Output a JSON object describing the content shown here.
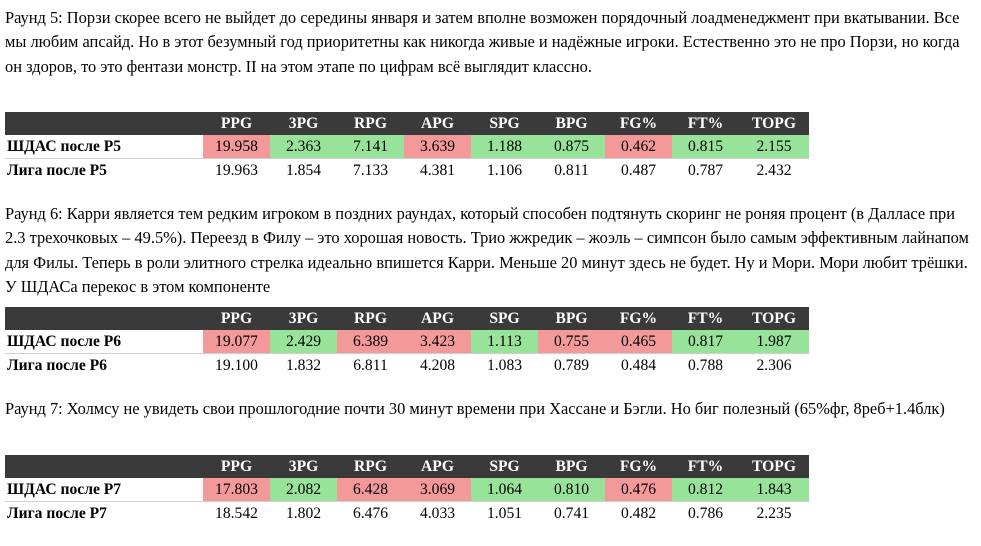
{
  "colors": {
    "header_bg": "#3a3a3a",
    "worse": "#f4999a",
    "better": "#98e39a"
  },
  "sections": [
    {
      "text": "Раунд 5: Порзи скорее всего не выйдет до середины января и затем вполне возможен порядочный лоадменеджмент при вкатывании. Все мы любим апсайд. Но в этот безумный год приоритетны как никогда живые и надёжные игроки. Естественно это не про Порзи, но когда он здоров, то это фентази монстр. II на этом этапе по цифрам всё выглядит классно.",
      "headers": [
        "",
        "PPG",
        "3PG",
        "RPG",
        "APG",
        "SPG",
        "BPG",
        "FG%",
        "FT%",
        "TOPG"
      ],
      "team": {
        "label": "ШДАС после Р5",
        "values": [
          "19.958",
          "2.363",
          "7.141",
          "3.639",
          "1.188",
          "0.875",
          "0.462",
          "0.815",
          "2.155"
        ],
        "colors": [
          "red",
          "green",
          "green",
          "red",
          "green",
          "green",
          "red",
          "green",
          "green"
        ]
      },
      "league": {
        "label": "Лига после Р5",
        "values": [
          "19.963",
          "1.854",
          "7.133",
          "4.381",
          "1.106",
          "0.811",
          "0.487",
          "0.787",
          "2.432"
        ]
      }
    },
    {
      "text": "Раунд 6: Карри является тем редким игроком в поздних раундах, который способен подтянуть скоринг не роняя процент (в Далласе при 2.3 трехочковых – 49.5%). Переезд в Филу – это хорошая новость. Трио жжредик – жоэль – симпсон было самым эффективным лайнапом для Филы. Теперь в роли элитного стрелка идеально впишется Карри. Меньше 20 минут здесь не будет. Ну и Мори. Мори любит трёшки. У ШДАСа перекос в этом компоненте",
      "headers": [
        "",
        "PPG",
        "3PG",
        "RPG",
        "APG",
        "SPG",
        "BPG",
        "FG%",
        "FT%",
        "TOPG"
      ],
      "team": {
        "label": "ШДАС после Р6",
        "values": [
          "19.077",
          "2.429",
          "6.389",
          "3.423",
          "1.113",
          "0.755",
          "0.465",
          "0.817",
          "1.987"
        ],
        "colors": [
          "red",
          "green",
          "red",
          "red",
          "green",
          "red",
          "red",
          "green",
          "green"
        ]
      },
      "league": {
        "label": "Лига после Р6",
        "values": [
          "19.100",
          "1.832",
          "6.811",
          "4.208",
          "1.083",
          "0.789",
          "0.484",
          "0.788",
          "2.306"
        ]
      }
    },
    {
      "text": "Раунд 7: Холмсу не увидеть свои прошлогодние почти 30 минут времени при Хассане и Бэгли. Но биг полезный (65%фг, 8реб+1.4блк)",
      "headers": [
        "",
        "PPG",
        "3PG",
        "RPG",
        "APG",
        "SPG",
        "BPG",
        "FG%",
        "FT%",
        "TOPG"
      ],
      "team": {
        "label": "ШДАС после Р7",
        "values": [
          "17.803",
          "2.082",
          "6.428",
          "3.069",
          "1.064",
          "0.810",
          "0.476",
          "0.812",
          "1.843"
        ],
        "colors": [
          "red",
          "green",
          "red",
          "red",
          "green",
          "green",
          "red",
          "green",
          "green"
        ]
      },
      "league": {
        "label": "Лига после Р7",
        "values": [
          "18.542",
          "1.802",
          "6.476",
          "4.033",
          "1.051",
          "0.741",
          "0.482",
          "0.786",
          "2.235"
        ]
      }
    }
  ]
}
